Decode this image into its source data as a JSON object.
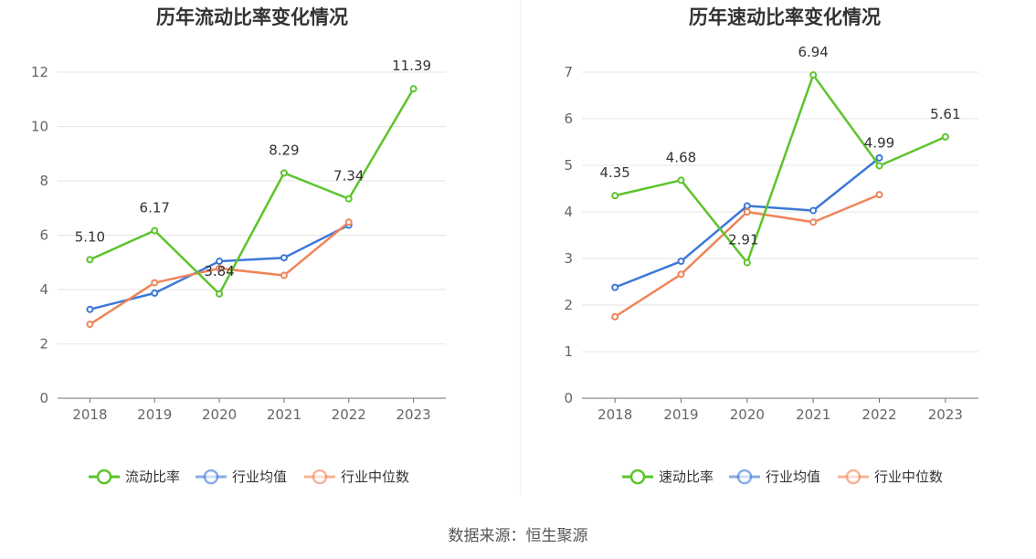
{
  "source_label": "数据来源：恒生聚源",
  "chart_data": [
    {
      "type": "line",
      "title": "历年流动比率变化情况",
      "categories": [
        "2018",
        "2019",
        "2020",
        "2021",
        "2022",
        "2023"
      ],
      "ylim": [
        0,
        12
      ],
      "yticks": [
        0,
        2,
        4,
        6,
        8,
        10,
        12
      ],
      "ytick_labels": [
        "0",
        "2",
        "4",
        "6",
        "8",
        "10",
        "12"
      ],
      "grid": true,
      "legend_position": "bottom-center",
      "series": [
        {
          "name": "流动比率",
          "color": "#5cc42b",
          "values": [
            5.1,
            6.17,
            3.84,
            8.29,
            7.34,
            11.39
          ],
          "labels": [
            "5.10",
            "6.17",
            "3.84",
            "8.29",
            "7.34",
            "11.39"
          ]
        },
        {
          "name": "行业均值",
          "color": "#3c78d8",
          "values": [
            3.27,
            3.87,
            5.04,
            5.17,
            6.37,
            null
          ]
        },
        {
          "name": "行业中位数",
          "color": "#ee8458",
          "values": [
            2.72,
            4.25,
            4.78,
            4.52,
            6.48,
            null
          ]
        }
      ]
    },
    {
      "type": "line",
      "title": "历年速动比率变化情况",
      "categories": [
        "2018",
        "2019",
        "2020",
        "2021",
        "2022",
        "2023"
      ],
      "ylim": [
        0,
        7
      ],
      "yticks": [
        0,
        1,
        2,
        3,
        4,
        5,
        6,
        7
      ],
      "ytick_labels": [
        "0",
        "1",
        "2",
        "3",
        "4",
        "5",
        "6",
        "7"
      ],
      "grid": true,
      "legend_position": "bottom-center",
      "series": [
        {
          "name": "速动比率",
          "color": "#5cc42b",
          "values": [
            4.35,
            4.68,
            2.91,
            6.94,
            4.99,
            5.61
          ],
          "labels": [
            "4.35",
            "4.68",
            "2.91",
            "6.94",
            "4.99",
            "5.61"
          ]
        },
        {
          "name": "行业均值",
          "color": "#3c78d8",
          "values": [
            2.38,
            2.94,
            4.13,
            4.03,
            5.16,
            null
          ]
        },
        {
          "name": "行业中位数",
          "color": "#ee8458",
          "values": [
            1.75,
            2.66,
            4.0,
            3.78,
            4.37,
            null
          ]
        }
      ]
    }
  ]
}
